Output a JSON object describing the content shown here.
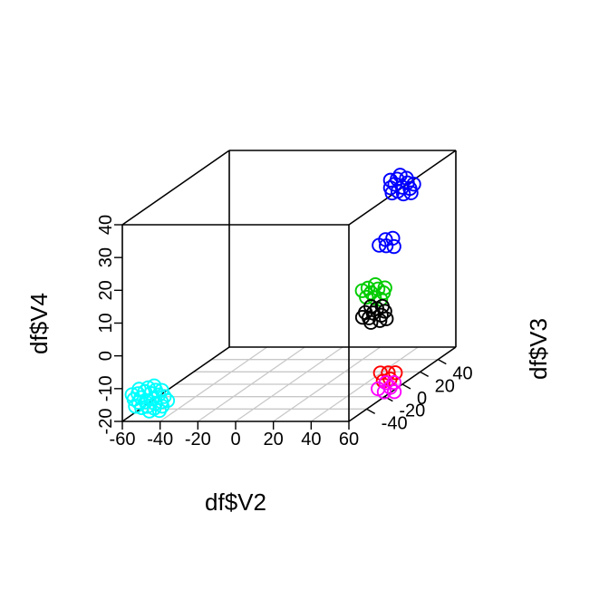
{
  "chart_data": {
    "type": "scatter",
    "projection": "3d-perspective box",
    "xlabel": "df$V2",
    "ylabel": "df$V3",
    "zlabel": "df$V4",
    "xlim": [
      -60,
      60
    ],
    "ylim": [
      -60,
      60
    ],
    "zlim": [
      -20,
      40
    ],
    "x_ticks": [
      "-60",
      "-40",
      "-20",
      "0",
      "20",
      "40",
      "60"
    ],
    "y_ticks": [
      "-40",
      "-20",
      "0",
      "20",
      "40"
    ],
    "z_ticks": [
      "-20",
      "-10",
      "0",
      "10",
      "20",
      "30",
      "40"
    ],
    "grid": "floor plane",
    "marker": "open circle",
    "series": [
      {
        "color": "#00ffff",
        "x": -50,
        "y": -50,
        "z": -15,
        "n": 26
      },
      {
        "color": "#0000ff",
        "x": 45,
        "y": 30,
        "z": 35,
        "n": 14
      },
      {
        "color": "#0000ff",
        "x": 45,
        "y": 15,
        "z": 20,
        "n": 5
      },
      {
        "color": "#00cc00",
        "x": 45,
        "y": 0,
        "z": 8,
        "n": 10
      },
      {
        "color": "#000000",
        "x": 55,
        "y": -20,
        "z": 5,
        "n": 12
      },
      {
        "color": "#ff0000",
        "x": 45,
        "y": 15,
        "z": -20,
        "n": 5
      },
      {
        "color": "#ff00ff",
        "x": 45,
        "y": 15,
        "z": -24,
        "n": 6
      }
    ]
  }
}
